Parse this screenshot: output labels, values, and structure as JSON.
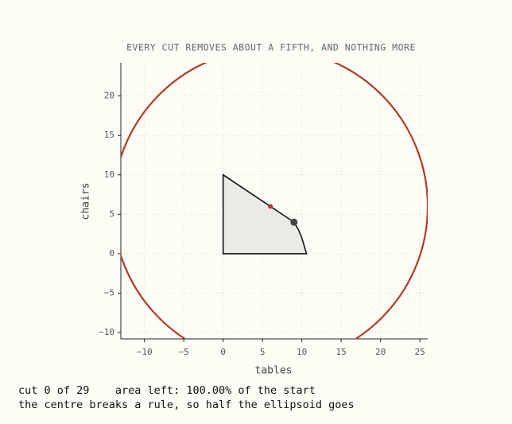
{
  "chart_data": {
    "type": "ellipsoid-cut",
    "title": "EVERY CUT REMOVES ABOUT A FIFTH, AND NOTHING MORE",
    "x_label": "tables",
    "y_label": "chairs",
    "xlim": [
      -13,
      26
    ],
    "ylim": [
      -10.8,
      24.2
    ],
    "xticks": [
      {
        "value": -10,
        "label": "−10"
      },
      {
        "value": -5,
        "label": "−5"
      },
      0,
      5,
      10,
      15,
      20,
      25
    ],
    "yticks": [
      {
        "value": -10,
        "label": "−10"
      },
      {
        "value": -5,
        "label": "−5"
      },
      0,
      5,
      10,
      15,
      20
    ],
    "grid": true,
    "ellipse": {
      "center": [
        6,
        6
      ],
      "rx": 20,
      "ry": 20,
      "color": "#b03a2e"
    },
    "region": {
      "x": [
        0,
        0,
        9,
        9.6,
        10,
        10.3,
        10.6
      ],
      "y": [
        0,
        10,
        4,
        3,
        2,
        1,
        0
      ],
      "color": "#ebebe6"
    },
    "points": [
      {
        "x": 9,
        "y": 4,
        "color": "#444444"
      },
      {
        "x": 6,
        "y": 6,
        "color": "#b03a2e"
      }
    ],
    "status": [
      "cut 0 of 29    area left: 100.00% of the start",
      "the centre breaks a rule, so half the ellipsoid goes"
    ]
  }
}
